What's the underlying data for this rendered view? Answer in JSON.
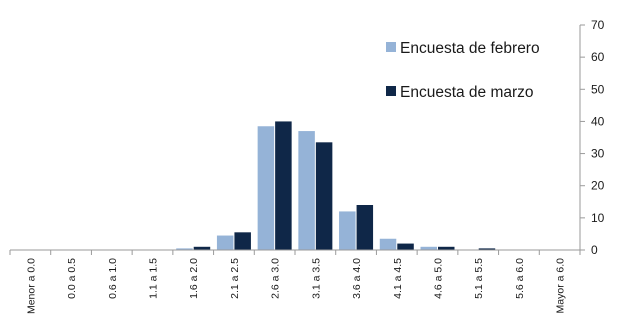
{
  "chart_data": {
    "type": "bar",
    "categories": [
      "Menor a 0.0",
      "0.0 a 0.5",
      "0.6 a 1.0",
      "1.1 a 1.5",
      "1.6 a 2.0",
      "2.1 a 2.5",
      "2.6 a 3.0",
      "3.1 a 3.5",
      "3.6 a 4.0",
      "4.1 a 4.5",
      "4.6 a 5.0",
      "5.1 a 5.5",
      "5.6 a 6.0",
      "Mayor a 6.0"
    ],
    "series": [
      {
        "name": "Encuesta de febrero",
        "color": "#95b3d7",
        "values": [
          0,
          0,
          0,
          0,
          0.5,
          4.5,
          38.5,
          37,
          12,
          3.5,
          1,
          0,
          0,
          0
        ]
      },
      {
        "name": "Encuesta de marzo",
        "color": "#0f2748",
        "values": [
          0,
          0,
          0,
          0,
          1,
          5.5,
          40,
          33.5,
          14,
          2,
          1,
          0.5,
          0,
          0
        ]
      }
    ],
    "y_axis": {
      "position": "right",
      "min": 0,
      "max": 70,
      "step": 10,
      "ticks": [
        "0",
        "10",
        "20",
        "30",
        "40",
        "50",
        "60",
        "70"
      ]
    },
    "title": "",
    "xlabel": "",
    "ylabel": "",
    "legend": "top-right",
    "grid": false
  }
}
